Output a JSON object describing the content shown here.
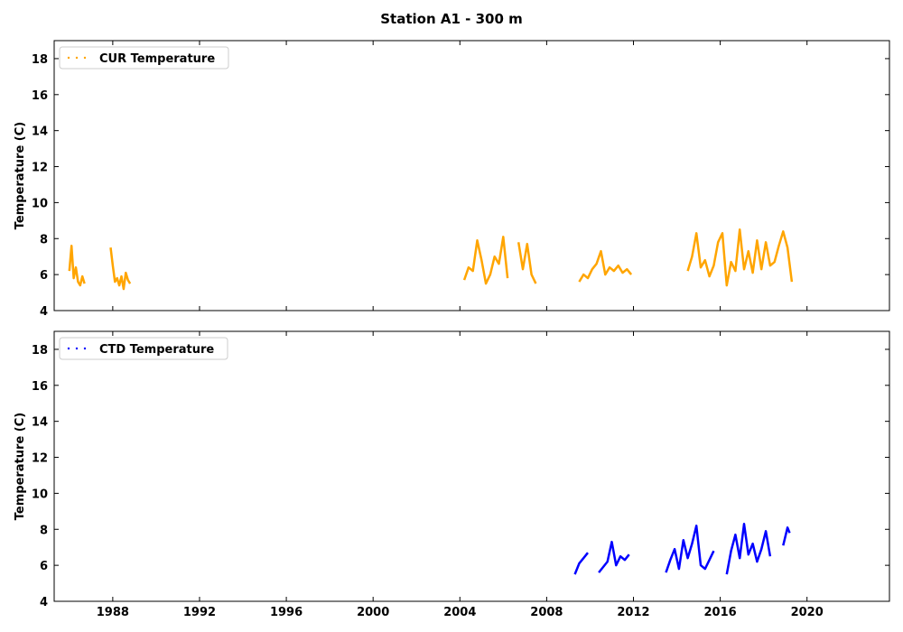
{
  "chart_data": {
    "type": "line",
    "title": "Station A1 - 300 m",
    "xlim": [
      1985.3,
      2023.8
    ],
    "x_ticks": [
      1988,
      1992,
      1996,
      2000,
      2004,
      2008,
      2012,
      2016,
      2020
    ],
    "panels": [
      {
        "ylabel": "Temperature (C)",
        "ylim": [
          4,
          19
        ],
        "y_ticks": [
          4,
          6,
          8,
          10,
          12,
          14,
          16,
          18
        ],
        "legend_position": "top-left",
        "series": [
          {
            "name": "CUR Temperature",
            "color": "#FFA500",
            "x": [
              1986.0,
              1986.1,
              1986.2,
              1986.3,
              1986.4,
              1986.5,
              1986.6,
              1986.7,
              1987.9,
              1988.0,
              1988.1,
              1988.2,
              1988.3,
              1988.4,
              1988.5,
              1988.6,
              1988.7,
              1988.8,
              2004.2,
              2004.4,
              2004.6,
              2004.8,
              2005.0,
              2005.2,
              2005.4,
              2005.6,
              2005.8,
              2006.0,
              2006.2,
              2006.7,
              2006.9,
              2007.1,
              2007.3,
              2007.5,
              2009.5,
              2009.7,
              2009.9,
              2010.1,
              2010.3,
              2010.5,
              2010.7,
              2010.9,
              2011.1,
              2011.3,
              2011.5,
              2011.7,
              2011.9,
              2014.5,
              2014.7,
              2014.9,
              2015.1,
              2015.3,
              2015.5,
              2015.7,
              2015.9,
              2016.1,
              2016.3,
              2016.5,
              2016.7,
              2016.9,
              2017.1,
              2017.3,
              2017.5,
              2017.7,
              2017.9,
              2018.1,
              2018.3,
              2018.5,
              2018.7,
              2018.9,
              2019.1,
              2019.3
            ],
            "y": [
              6.2,
              7.6,
              5.8,
              6.4,
              5.6,
              5.4,
              5.9,
              5.5,
              7.5,
              6.5,
              5.6,
              5.8,
              5.4,
              5.9,
              5.2,
              6.1,
              5.7,
              5.5,
              5.7,
              6.4,
              6.2,
              7.9,
              6.8,
              5.5,
              6.0,
              7.0,
              6.6,
              8.1,
              5.8,
              7.8,
              6.3,
              7.7,
              6.0,
              5.5,
              5.6,
              6.0,
              5.8,
              6.3,
              6.6,
              7.3,
              6.0,
              6.4,
              6.2,
              6.5,
              6.1,
              6.3,
              6.0,
              6.2,
              7.0,
              8.3,
              6.4,
              6.8,
              5.9,
              6.5,
              7.8,
              8.3,
              5.4,
              6.7,
              6.2,
              8.5,
              6.3,
              7.3,
              6.1,
              7.9,
              6.3,
              7.8,
              6.5,
              6.7,
              7.6,
              8.4,
              7.5,
              5.6
            ]
          }
        ]
      },
      {
        "ylabel": "Temperature (C)",
        "ylim": [
          4,
          19
        ],
        "y_ticks": [
          4,
          6,
          8,
          10,
          12,
          14,
          16,
          18
        ],
        "legend_position": "top-left",
        "series": [
          {
            "name": "CTD Temperature",
            "color": "#0000FF",
            "x": [
              2009.3,
              2009.5,
              2009.7,
              2009.9,
              2010.4,
              2010.6,
              2010.8,
              2011.0,
              2011.2,
              2011.4,
              2011.6,
              2011.8,
              2013.5,
              2013.7,
              2013.9,
              2014.1,
              2014.3,
              2014.5,
              2014.7,
              2014.9,
              2015.1,
              2015.3,
              2015.5,
              2015.7,
              2016.3,
              2016.5,
              2016.7,
              2016.9,
              2017.1,
              2017.3,
              2017.5,
              2017.7,
              2017.9,
              2018.1,
              2018.3,
              2018.9,
              2019.1,
              2019.2
            ],
            "y": [
              5.5,
              6.1,
              6.4,
              6.7,
              5.6,
              5.9,
              6.2,
              7.3,
              6.0,
              6.5,
              6.3,
              6.6,
              5.6,
              6.3,
              6.9,
              5.8,
              7.4,
              6.4,
              7.2,
              8.2,
              6.0,
              5.8,
              6.3,
              6.8,
              5.5,
              6.8,
              7.7,
              6.4,
              8.3,
              6.6,
              7.2,
              6.2,
              6.9,
              7.9,
              6.5,
              7.1,
              8.1,
              7.8
            ]
          }
        ]
      }
    ]
  }
}
